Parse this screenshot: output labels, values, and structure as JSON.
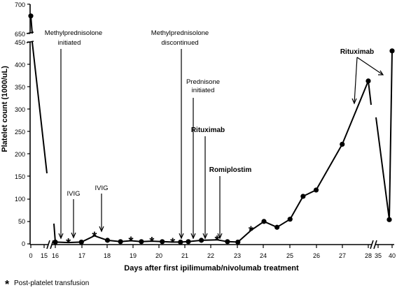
{
  "chart_data": {
    "type": "line",
    "title": "",
    "xlabel": "Days after first ipilimumab/nivolumab treatment",
    "ylabel": "Platelet count (1000/uL)",
    "ylim_main": [
      0,
      450
    ],
    "ylim_upper": [
      650,
      700
    ],
    "y_ticks_main": [
      "0",
      "50",
      "100",
      "150",
      "200",
      "250",
      "300",
      "350",
      "400",
      "450"
    ],
    "y_ticks_upper": [
      "650",
      "700"
    ],
    "x_ticks": [
      "0",
      "15",
      "16",
      "17",
      "18",
      "19",
      "20",
      "21",
      "22",
      "23",
      "24",
      "25",
      "26",
      "27",
      "28",
      "35",
      "40"
    ],
    "series": [
      {
        "points": [
          {
            "x": 0,
            "y": 680
          },
          {
            "x": 16,
            "y": 4,
            "transfusion": false
          },
          {
            "x": 16.5,
            "y": 3,
            "transfusion": true
          },
          {
            "x": 17,
            "y": 4,
            "transfusion": false
          },
          {
            "x": 17.5,
            "y": 18,
            "transfusion": true
          },
          {
            "x": 18,
            "y": 8,
            "transfusion": false
          },
          {
            "x": 18.5,
            "y": 5,
            "transfusion": false
          },
          {
            "x": 18.9,
            "y": 7,
            "transfusion": true
          },
          {
            "x": 19.3,
            "y": 5,
            "transfusion": false
          },
          {
            "x": 19.7,
            "y": 6,
            "transfusion": true
          },
          {
            "x": 20.1,
            "y": 5,
            "transfusion": false
          },
          {
            "x": 20.5,
            "y": 4,
            "transfusion": true
          },
          {
            "x": 20.8,
            "y": 4,
            "transfusion": false
          },
          {
            "x": 21.1,
            "y": 5,
            "transfusion": false
          },
          {
            "x": 21.6,
            "y": 8,
            "transfusion": false
          },
          {
            "x": 22.2,
            "y": 9,
            "transfusion": true
          },
          {
            "x": 22.6,
            "y": 5,
            "transfusion": false
          },
          {
            "x": 23,
            "y": 4,
            "transfusion": false
          },
          {
            "x": 23.5,
            "y": 30,
            "transfusion": true
          },
          {
            "x": 24,
            "y": 50,
            "transfusion": false
          },
          {
            "x": 24.5,
            "y": 37,
            "transfusion": false
          },
          {
            "x": 25,
            "y": 55,
            "transfusion": false
          },
          {
            "x": 25.5,
            "y": 106,
            "transfusion": false
          },
          {
            "x": 26,
            "y": 120,
            "transfusion": false
          },
          {
            "x": 27,
            "y": 222,
            "transfusion": false
          },
          {
            "x": 28,
            "y": 363,
            "transfusion": false
          },
          {
            "x": 39,
            "y": 54,
            "transfusion": false
          },
          {
            "x": 40,
            "y": 430,
            "transfusion": false
          }
        ]
      }
    ],
    "annotations": [
      {
        "text": "Methylprednisolone initiated",
        "at_x": 16.25
      },
      {
        "text": "IVIG",
        "at_x": 16.75
      },
      {
        "text": "IVIG",
        "at_x": 17.7
      },
      {
        "text": "Methylprednisolone discontinued",
        "at_x": 20.85
      },
      {
        "text": "Prednisone initiated",
        "at_x": 21.2
      },
      {
        "text": "Rituximab",
        "at_x": 21.7
      },
      {
        "text": "Romiplostim",
        "at_x": 22.3
      },
      {
        "text": "Rituximab",
        "at_x": 27.65
      },
      {
        "text": "Rituximab",
        "at_x": 39.8
      }
    ],
    "legend_note": "Post-platelet transfusion",
    "grid": false,
    "axis_breaks": {
      "y": [
        450,
        650
      ],
      "x": [
        [
          0,
          15
        ],
        [
          28,
          35
        ]
      ]
    }
  }
}
